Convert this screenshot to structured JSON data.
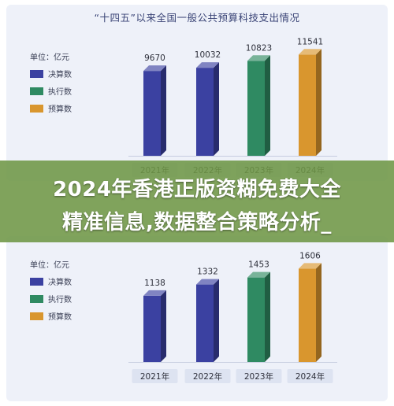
{
  "top": {
    "title": "“十四五”以来全国一般公共预算科技支出情况",
    "unit_label": "单位：亿元",
    "legend": [
      {
        "label": "决算数",
        "color": "#3b41a1"
      },
      {
        "label": "执行数",
        "color": "#2f8a62"
      },
      {
        "label": "预算数",
        "color": "#d9962e"
      }
    ]
  },
  "bottom": {
    "unit_label": "单位：亿元",
    "legend": [
      {
        "label": "决算数",
        "color": "#3b41a1"
      },
      {
        "label": "执行数",
        "color": "#2f8a62"
      },
      {
        "label": "预算数",
        "color": "#d9962e"
      }
    ]
  },
  "overlay": {
    "line1": "2024年香港正版资糊免费大全",
    "line2": "精准信息,数据整合策略分析_"
  },
  "chart_data": [
    {
      "type": "bar",
      "title": "“十四五”以来全国一般公共预算科技支出情况",
      "categories": [
        "2021年",
        "2022年",
        "2023年",
        "2024年"
      ],
      "values": [
        9670,
        10032,
        10823,
        11541
      ],
      "bar_kinds": [
        "决算数",
        "决算数",
        "执行数",
        "预算数"
      ],
      "ylim": [
        0,
        13000
      ],
      "legend_position": "top-left"
    },
    {
      "type": "bar",
      "categories": [
        "2021年",
        "2022年",
        "2023年",
        "2024年"
      ],
      "values": [
        1138,
        1332,
        1453,
        1606
      ],
      "bar_kinds": [
        "决算数",
        "决算数",
        "执行数",
        "预算数"
      ],
      "ylim": [
        0,
        1800
      ],
      "legend_position": "top-left"
    }
  ]
}
